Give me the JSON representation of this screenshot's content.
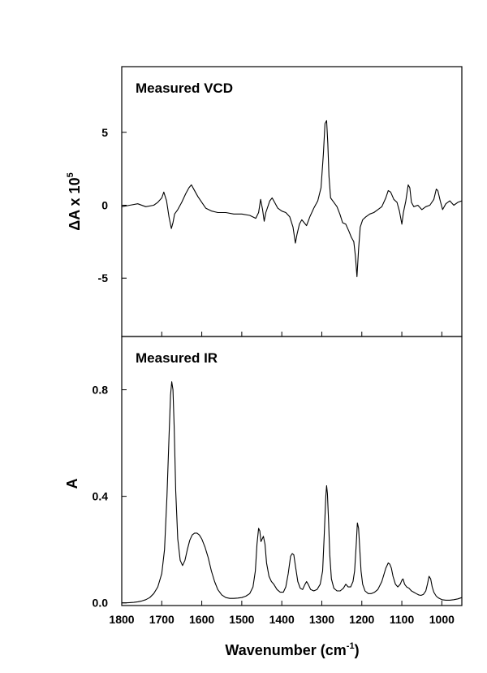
{
  "chart_data": [
    {
      "type": "line",
      "panel_label": "Measured VCD",
      "ylabel_main": "ΔA x 10",
      "ylabel_exp": "5",
      "xlim": [
        1800,
        950
      ],
      "ylim": [
        -9,
        9.5
      ],
      "yticks": [
        5,
        0,
        -5
      ],
      "ytick_labels": [
        "5",
        "0",
        "-5"
      ],
      "series": [
        {
          "x": [
            1800,
            1780,
            1760,
            1740,
            1720,
            1710,
            1700,
            1695,
            1688,
            1682,
            1676,
            1672,
            1668,
            1660,
            1650,
            1640,
            1632,
            1626,
            1620,
            1610,
            1600,
            1590,
            1575,
            1560,
            1540,
            1520,
            1500,
            1480,
            1465,
            1458,
            1453,
            1448,
            1444,
            1440,
            1430,
            1424,
            1418,
            1410,
            1400,
            1390,
            1380,
            1372,
            1366,
            1362,
            1356,
            1350,
            1344,
            1338,
            1330,
            1320,
            1310,
            1302,
            1296,
            1292,
            1288,
            1285,
            1282,
            1278,
            1270,
            1262,
            1255,
            1248,
            1240,
            1232,
            1226,
            1220,
            1216,
            1212,
            1208,
            1204,
            1198,
            1190,
            1180,
            1170,
            1160,
            1150,
            1140,
            1134,
            1128,
            1120,
            1112,
            1106,
            1100,
            1096,
            1090,
            1084,
            1080,
            1076,
            1070,
            1060,
            1050,
            1040,
            1030,
            1020,
            1014,
            1010,
            1004,
            998,
            990,
            980,
            970,
            960,
            950
          ],
          "values": [
            -0.1,
            0.0,
            0.1,
            -0.1,
            0.0,
            0.2,
            0.5,
            0.9,
            0.3,
            -0.8,
            -1.6,
            -1.2,
            -0.6,
            -0.3,
            0.2,
            0.8,
            1.2,
            1.4,
            1.1,
            0.6,
            0.2,
            -0.2,
            -0.4,
            -0.5,
            -0.5,
            -0.6,
            -0.6,
            -0.7,
            -0.9,
            -0.5,
            0.4,
            -0.3,
            -1.1,
            -0.5,
            0.3,
            0.5,
            0.2,
            -0.2,
            -0.4,
            -0.5,
            -0.8,
            -1.5,
            -2.6,
            -2.0,
            -1.3,
            -1.0,
            -1.2,
            -1.4,
            -0.8,
            -0.2,
            0.3,
            1.2,
            3.5,
            5.6,
            5.8,
            4.2,
            2.0,
            0.5,
            0.2,
            -0.1,
            -0.6,
            -1.2,
            -1.3,
            -1.8,
            -2.2,
            -2.5,
            -3.5,
            -4.9,
            -3.0,
            -1.5,
            -1.0,
            -0.8,
            -0.6,
            -0.5,
            -0.3,
            -0.1,
            0.5,
            1.0,
            0.9,
            0.4,
            0.2,
            -0.4,
            -1.3,
            -0.5,
            0.3,
            1.4,
            1.2,
            0.2,
            -0.1,
            0.0,
            -0.3,
            -0.1,
            0.0,
            0.4,
            1.1,
            1.0,
            0.3,
            -0.3,
            0.1,
            0.3,
            0.0,
            0.2,
            0.3
          ]
        }
      ]
    },
    {
      "type": "line",
      "panel_label": "Measured IR",
      "ylabel": "A",
      "xlabel_main": "Wavenumber (cm",
      "xlabel_exp": "-1",
      "xlabel_tail": ")",
      "xlim": [
        1800,
        950
      ],
      "ylim": [
        -0.01,
        1.0
      ],
      "xticks": [
        1800,
        1700,
        1600,
        1500,
        1400,
        1300,
        1200,
        1100,
        1000
      ],
      "xtick_labels": [
        "1800",
        "1700",
        "1600",
        "1500",
        "1400",
        "1300",
        "1200",
        "1100",
        "1000"
      ],
      "yticks": [
        0.0,
        0.4,
        0.8
      ],
      "ytick_labels": [
        "0.0",
        "0.4",
        "0.8"
      ],
      "series": [
        {
          "x": [
            1800,
            1790,
            1780,
            1770,
            1760,
            1750,
            1740,
            1730,
            1720,
            1710,
            1700,
            1693,
            1687,
            1682,
            1678,
            1675,
            1672,
            1669,
            1665,
            1660,
            1654,
            1648,
            1642,
            1636,
            1630,
            1624,
            1618,
            1612,
            1606,
            1600,
            1592,
            1584,
            1576,
            1568,
            1560,
            1550,
            1540,
            1530,
            1520,
            1510,
            1500,
            1490,
            1480,
            1472,
            1466,
            1462,
            1458,
            1455,
            1452,
            1449,
            1446,
            1442,
            1438,
            1432,
            1426,
            1420,
            1412,
            1404,
            1396,
            1390,
            1384,
            1378,
            1374,
            1370,
            1366,
            1360,
            1354,
            1348,
            1342,
            1338,
            1334,
            1328,
            1320,
            1312,
            1304,
            1298,
            1294,
            1290,
            1288,
            1286,
            1283,
            1280,
            1276,
            1270,
            1262,
            1254,
            1246,
            1240,
            1234,
            1228,
            1222,
            1218,
            1214,
            1211,
            1208,
            1205,
            1202,
            1198,
            1192,
            1184,
            1176,
            1168,
            1160,
            1150,
            1140,
            1134,
            1130,
            1126,
            1122,
            1116,
            1110,
            1104,
            1100,
            1097,
            1093,
            1088,
            1082,
            1076,
            1070,
            1064,
            1058,
            1052,
            1046,
            1040,
            1036,
            1032,
            1028,
            1024,
            1020,
            1014,
            1008,
            1000,
            990,
            980,
            970,
            960,
            950
          ],
          "values": [
            0.0,
            0.0,
            0.001,
            0.002,
            0.004,
            0.007,
            0.012,
            0.02,
            0.035,
            0.06,
            0.11,
            0.2,
            0.4,
            0.62,
            0.78,
            0.83,
            0.8,
            0.66,
            0.42,
            0.24,
            0.16,
            0.14,
            0.16,
            0.2,
            0.235,
            0.255,
            0.262,
            0.262,
            0.255,
            0.24,
            0.21,
            0.17,
            0.12,
            0.08,
            0.05,
            0.03,
            0.02,
            0.017,
            0.017,
            0.018,
            0.02,
            0.025,
            0.035,
            0.06,
            0.12,
            0.22,
            0.28,
            0.27,
            0.23,
            0.24,
            0.25,
            0.22,
            0.15,
            0.1,
            0.08,
            0.07,
            0.05,
            0.04,
            0.04,
            0.06,
            0.11,
            0.175,
            0.185,
            0.18,
            0.14,
            0.08,
            0.055,
            0.05,
            0.07,
            0.08,
            0.07,
            0.05,
            0.045,
            0.05,
            0.07,
            0.12,
            0.25,
            0.4,
            0.44,
            0.41,
            0.3,
            0.18,
            0.09,
            0.055,
            0.045,
            0.045,
            0.055,
            0.07,
            0.06,
            0.06,
            0.08,
            0.12,
            0.22,
            0.3,
            0.28,
            0.2,
            0.12,
            0.07,
            0.045,
            0.035,
            0.035,
            0.04,
            0.05,
            0.08,
            0.13,
            0.15,
            0.145,
            0.13,
            0.1,
            0.07,
            0.06,
            0.07,
            0.085,
            0.09,
            0.07,
            0.06,
            0.055,
            0.045,
            0.04,
            0.035,
            0.03,
            0.028,
            0.032,
            0.045,
            0.07,
            0.1,
            0.09,
            0.06,
            0.04,
            0.025,
            0.018,
            0.012,
            0.01,
            0.01,
            0.012,
            0.015,
            0.02
          ]
        }
      ]
    }
  ]
}
